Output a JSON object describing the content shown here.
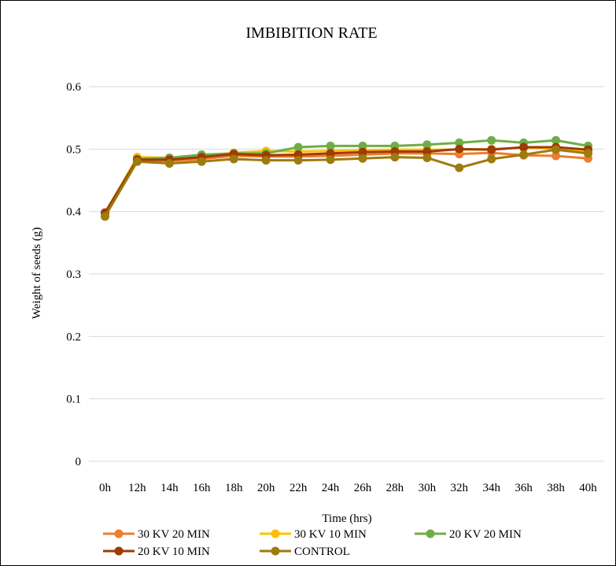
{
  "chart_data": {
    "type": "line",
    "title": "IMBIBITION RATE",
    "xlabel": "Time (hrs)",
    "ylabel": "Weight of seeds (g)",
    "ylim": [
      0,
      0.6
    ],
    "yticks": [
      "0",
      "0.1",
      "0.2",
      "0.3",
      "0.4",
      "0.5",
      "0.6"
    ],
    "grid": true,
    "legend_position": "bottom",
    "categories": [
      "0h",
      "12h",
      "14h",
      "16h",
      "18h",
      "20h",
      "22h",
      "24h",
      "26h",
      "28h",
      "30h",
      "32h",
      "34h",
      "36h",
      "38h",
      "40h"
    ],
    "series": [
      {
        "name": "30 KV 20 MIN",
        "color": "#ED7D31",
        "values": [
          0.396,
          0.482,
          0.481,
          0.484,
          0.489,
          0.488,
          0.488,
          0.489,
          0.491,
          0.493,
          0.493,
          0.492,
          0.494,
          0.49,
          0.489,
          0.485
        ]
      },
      {
        "name": "30 KV 10 MIN",
        "color": "#FFC000",
        "values": [
          0.397,
          0.487,
          0.486,
          0.489,
          0.494,
          0.497,
          0.496,
          0.497,
          0.498,
          0.499,
          0.499,
          0.499,
          0.5,
          0.502,
          0.501,
          0.496
        ]
      },
      {
        "name": "20 KV 20 MIN",
        "color": "#70AD47",
        "values": [
          0.398,
          0.484,
          0.486,
          0.491,
          0.493,
          0.493,
          0.503,
          0.505,
          0.505,
          0.505,
          0.507,
          0.51,
          0.514,
          0.51,
          0.514,
          0.505
        ]
      },
      {
        "name": "20 KV 10 MIN",
        "color": "#9E3B07",
        "values": [
          0.398,
          0.483,
          0.483,
          0.487,
          0.492,
          0.49,
          0.491,
          0.493,
          0.495,
          0.496,
          0.496,
          0.5,
          0.499,
          0.503,
          0.503,
          0.499
        ]
      },
      {
        "name": "CONTROL",
        "color": "#9E7B0E",
        "values": [
          0.392,
          0.48,
          0.477,
          0.48,
          0.484,
          0.482,
          0.482,
          0.483,
          0.485,
          0.487,
          0.486,
          0.47,
          0.484,
          0.491,
          0.499,
          0.493
        ]
      }
    ]
  }
}
